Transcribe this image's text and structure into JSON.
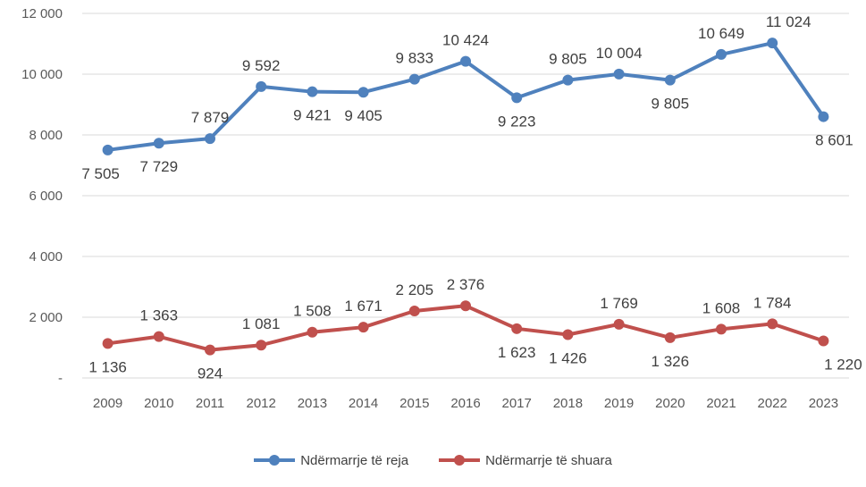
{
  "chart_data": {
    "type": "line",
    "title": "",
    "xlabel": "",
    "ylabel": "",
    "x": [
      "2009",
      "2010",
      "2011",
      "2012",
      "2013",
      "2014",
      "2015",
      "2016",
      "2017",
      "2018",
      "2019",
      "2020",
      "2021",
      "2022",
      "2023"
    ],
    "ylim": [
      0,
      12000
    ],
    "y_ticks": [
      0,
      2000,
      4000,
      6000,
      8000,
      10000,
      12000
    ],
    "y_tick_labels": [
      "-",
      "2 000",
      "4 000",
      "6 000",
      "8 000",
      "10 000",
      "12 000"
    ],
    "grid": true,
    "legend_position": "bottom",
    "series": [
      {
        "name": "Ndërmarrje të reja",
        "color": "#4F81BD",
        "values": [
          7505,
          7729,
          7879,
          9592,
          9421,
          9405,
          9833,
          10424,
          9223,
          9805,
          10004,
          9805,
          10649,
          11024,
          8601
        ],
        "labels": [
          "7 505",
          "7 729",
          "7 879",
          "9 592",
          "9 421",
          "9 405",
          "9 833",
          "10 424",
          "9 223",
          "9 805",
          "10 004",
          "9 805",
          "10 649",
          "11 024",
          "8 601"
        ]
      },
      {
        "name": "Ndërmarrje të shuara",
        "color": "#C0504D",
        "values": [
          1136,
          1363,
          924,
          1081,
          1508,
          1671,
          2205,
          2376,
          1623,
          1426,
          1769,
          1326,
          1608,
          1784,
          1220
        ],
        "labels": [
          "1 136",
          "1 363",
          "924",
          "1 081",
          "1 508",
          "1 671",
          "2 205",
          "2 376",
          "1 623",
          "1 426",
          "1 769",
          "1 326",
          "1 608",
          "1 784",
          "1 220"
        ]
      }
    ]
  }
}
